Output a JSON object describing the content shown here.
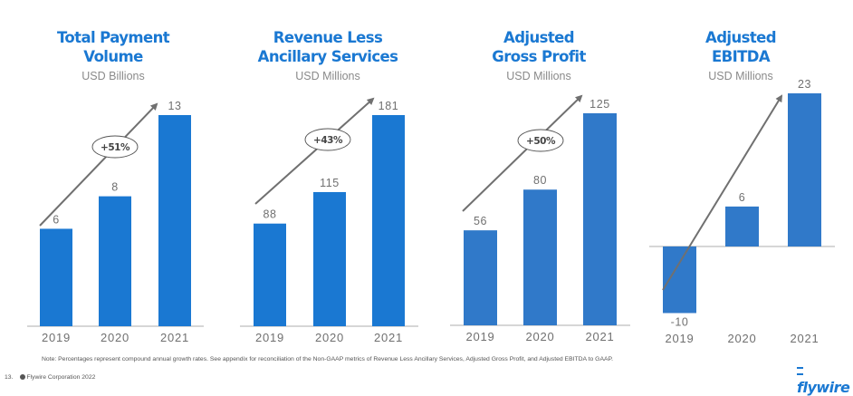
{
  "chart_data": [
    {
      "type": "bar",
      "title": [
        "Total Payment",
        "Volume"
      ],
      "subtitle": "USD Billions",
      "categories": [
        "2019",
        "2020",
        "2021"
      ],
      "values": [
        6,
        8,
        13
      ],
      "value_labels": [
        "6",
        "8",
        "13"
      ],
      "cagr_label": "+51%",
      "ylim": [
        0,
        13
      ],
      "color": "#1a78d2"
    },
    {
      "type": "bar",
      "title": [
        "Revenue Less",
        "Ancillary Services"
      ],
      "subtitle": "USD Millions",
      "categories": [
        "2019",
        "2020",
        "2021"
      ],
      "values": [
        88,
        115,
        181
      ],
      "value_labels": [
        "88",
        "115",
        "181"
      ],
      "cagr_label": "+43%",
      "ylim": [
        0,
        181
      ],
      "color": "#1a78d2"
    },
    {
      "type": "bar",
      "title": [
        "Adjusted",
        "Gross Profit"
      ],
      "subtitle": "USD Millions",
      "categories": [
        "2019",
        "2020",
        "2021"
      ],
      "values": [
        56,
        80,
        125
      ],
      "value_labels": [
        "56",
        "80",
        "125"
      ],
      "cagr_label": "+50%",
      "ylim": [
        0,
        125
      ],
      "color": "#3079c9"
    },
    {
      "type": "bar",
      "title": [
        "Adjusted",
        "EBITDA"
      ],
      "subtitle": "USD Millions",
      "categories": [
        "2019",
        "2020",
        "2021"
      ],
      "values": [
        -10,
        6,
        23
      ],
      "value_labels": [
        "-10",
        "6",
        "23"
      ],
      "cagr_label": "",
      "ylim": [
        -10,
        23
      ],
      "color": "#3079c9"
    }
  ],
  "note": "Note: Percentages represent compound annual growth  rates. See appendix for reconciliation of the Non-GAAP metrics of Revenue Less Ancillary Services, Adjusted Gross Profit,  and Adjusted EBITDA to GAAP.",
  "footer": {
    "page_number": "13.",
    "copyright": "Flywire Corporation 2022"
  },
  "brand": {
    "logo_text": "flywire",
    "logo_icon": "flywire-mark-icon"
  }
}
